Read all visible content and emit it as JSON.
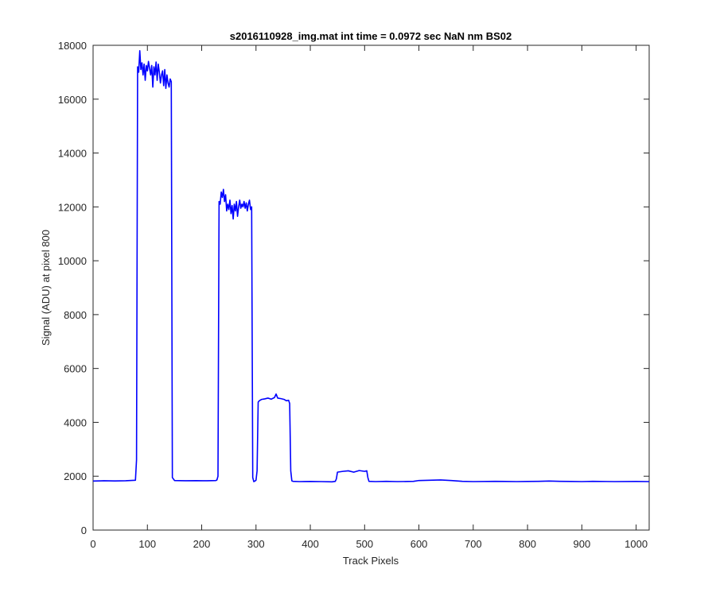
{
  "chart_data": {
    "type": "line",
    "title": "s2016110928_img.mat int time = 0.0972 sec  NaN nm BS02",
    "xlabel": "Track Pixels",
    "ylabel": "Signal (ADU) at pixel 800",
    "xlim": [
      0,
      1024
    ],
    "ylim": [
      0,
      18000
    ],
    "xticks": [
      0,
      100,
      200,
      300,
      400,
      500,
      600,
      700,
      800,
      900,
      1000
    ],
    "yticks": [
      0,
      2000,
      4000,
      6000,
      8000,
      10000,
      12000,
      14000,
      16000,
      18000
    ],
    "grid": false,
    "legend": "none",
    "line_color": "#0000ff",
    "axes_color": "#262626",
    "series": [
      {
        "x": [
          0,
          20,
          40,
          60,
          78,
          80,
          82,
          84,
          86,
          88,
          90,
          92,
          94,
          96,
          98,
          100,
          102,
          104,
          106,
          108,
          110,
          112,
          114,
          116,
          118,
          120,
          122,
          124,
          126,
          128,
          130,
          132,
          134,
          136,
          138,
          140,
          142,
          144,
          146,
          150,
          170,
          190,
          210,
          226,
          228,
          230,
          232,
          234,
          236,
          238,
          240,
          242,
          244,
          246,
          248,
          250,
          252,
          254,
          256,
          258,
          260,
          262,
          264,
          266,
          268,
          270,
          272,
          274,
          276,
          278,
          280,
          282,
          284,
          286,
          288,
          290,
          292,
          294,
          296,
          298,
          300,
          302,
          304,
          306,
          310,
          316,
          322,
          328,
          334,
          337,
          340,
          346,
          352,
          356,
          360,
          362,
          364,
          366,
          368,
          380,
          400,
          420,
          440,
          446,
          448,
          450,
          460,
          470,
          480,
          490,
          500,
          504,
          506,
          508,
          520,
          540,
          560,
          580,
          590,
          600,
          620,
          640,
          650,
          660,
          680,
          700,
          740,
          780,
          800,
          820,
          840,
          860,
          880,
          900,
          920,
          960,
          1000,
          1024
        ],
        "y": [
          1820,
          1830,
          1825,
          1830,
          1850,
          2600,
          17200,
          17000,
          17800,
          17100,
          17350,
          16900,
          17300,
          16700,
          17250,
          17050,
          17400,
          17150,
          16900,
          17250,
          16450,
          17200,
          16900,
          17380,
          16700,
          17300,
          17000,
          16600,
          16900,
          17050,
          16500,
          17100,
          16400,
          16900,
          16600,
          16450,
          16750,
          16650,
          1950,
          1840,
          1830,
          1835,
          1830,
          1840,
          1860,
          2000,
          12200,
          12100,
          12550,
          12350,
          12650,
          12200,
          12450,
          11850,
          12100,
          11900,
          12250,
          11750,
          12050,
          11550,
          12100,
          11850,
          12200,
          11650,
          12000,
          12250,
          11950,
          12100,
          12000,
          12200,
          11950,
          12150,
          11850,
          12100,
          12250,
          11900,
          12000,
          1950,
          1800,
          1820,
          1850,
          2200,
          4750,
          4800,
          4850,
          4870,
          4900,
          4860,
          4920,
          5050,
          4900,
          4880,
          4850,
          4800,
          4820,
          4700,
          2200,
          1830,
          1810,
          1800,
          1805,
          1800,
          1790,
          1810,
          1900,
          2150,
          2180,
          2200,
          2150,
          2210,
          2180,
          2200,
          1950,
          1810,
          1800,
          1810,
          1800,
          1805,
          1810,
          1840,
          1850,
          1860,
          1850,
          1840,
          1810,
          1800,
          1810,
          1800,
          1805,
          1810,
          1820,
          1810,
          1805,
          1800,
          1810,
          1800,
          1805,
          1800
        ]
      }
    ]
  }
}
